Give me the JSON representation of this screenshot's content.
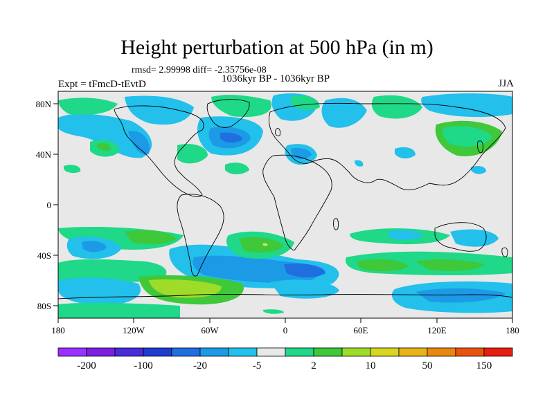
{
  "title": "Height perturbation at 500 hPa (in m)",
  "stats": "rmsd= 2.99998 diff= -2.35756e-08",
  "period": "1036kyr BP - 1036kyr BP",
  "experiment": "Expt = tFmcD-tEvtD",
  "season": "JJA",
  "map": {
    "lat_ticks": [
      "80N",
      "40N",
      "0",
      "40S",
      "80S"
    ],
    "lon_ticks": [
      "180",
      "120W",
      "60W",
      "0",
      "60E",
      "120E",
      "180"
    ],
    "ocean_color": "#e8e8e8",
    "coast_color": "#000000"
  },
  "colorbar": {
    "colors": [
      "#9b30ff",
      "#7b1fe0",
      "#4a2bd8",
      "#1e3ccf",
      "#1f6fe0",
      "#1c9ae6",
      "#22c0ea",
      "#e8e8e8",
      "#1fd888",
      "#3ec83a",
      "#9fdc2a",
      "#d8d620",
      "#e8b418",
      "#e88810",
      "#e85410",
      "#e81e10"
    ],
    "labels": [
      "-200",
      "-100",
      "-20",
      "-5",
      "2",
      "10",
      "50",
      "150"
    ]
  },
  "field_palette": {
    "blue_light": "#22c0ea",
    "blue_mid": "#1c9ae6",
    "blue_dark": "#1f6fe0",
    "green_teal": "#1fd888",
    "green": "#3ec83a",
    "yellow": "#e8e070"
  }
}
